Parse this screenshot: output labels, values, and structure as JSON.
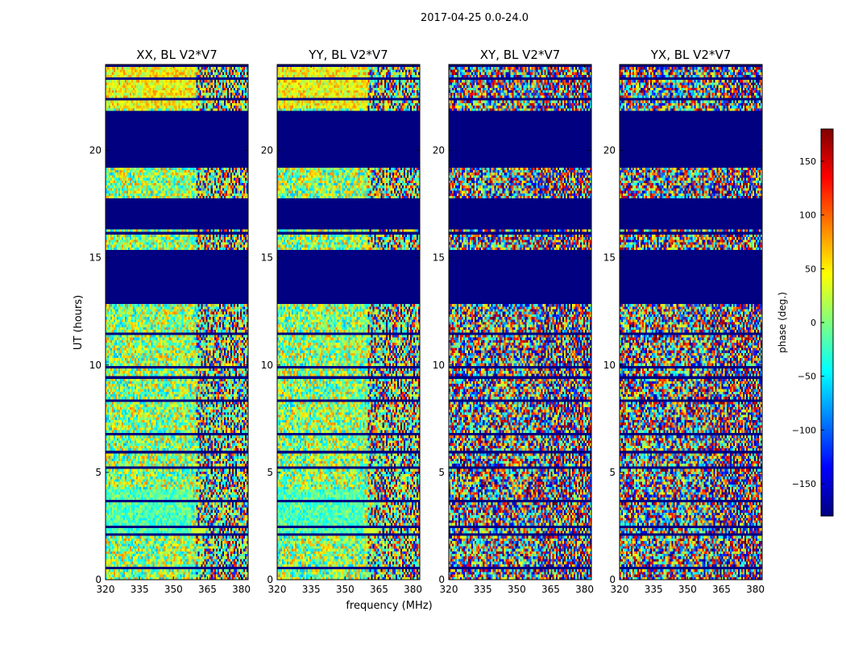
{
  "suptitle": "2017-04-25 0.0-24.0",
  "chart_data": [
    {
      "type": "heatmap",
      "title": "XX, BL V2*V7",
      "xlabel": "frequency (MHz)",
      "ylabel": "UT (hours)",
      "xlim": [
        320,
        383
      ],
      "ylim": [
        0,
        24
      ],
      "xticks": [
        "320",
        "335",
        "350",
        "365",
        "380"
      ],
      "yticks": [
        "0",
        "5",
        "10",
        "15",
        "20"
      ],
      "masked_bands_hours": [
        [
          13.0,
          15.4
        ],
        [
          16.5,
          17.8
        ],
        [
          19.3,
          21.8
        ]
      ],
      "bright_ridge": {
        "hours": [
          4.2,
          2.0
        ],
        "band_hours": [
          2.1,
          2.5
        ]
      }
    },
    {
      "type": "heatmap",
      "title": "YY, BL V2*V7",
      "xlabel": "frequency (MHz)",
      "xlim": [
        320,
        383
      ],
      "ylim": [
        0,
        24
      ],
      "xticks": [
        "320",
        "335",
        "350",
        "365",
        "380"
      ],
      "yticks": [
        "0",
        "5",
        "10",
        "15",
        "20"
      ],
      "masked_bands_hours": [
        [
          13.0,
          15.4
        ],
        [
          16.5,
          17.8
        ],
        [
          19.3,
          21.8
        ]
      ],
      "bright_ridge": {
        "hours": [
          4.2,
          2.0
        ],
        "band_hours": [
          2.1,
          2.5
        ]
      }
    },
    {
      "type": "heatmap",
      "title": "XY, BL V2*V7",
      "xlim": [
        320,
        383
      ],
      "ylim": [
        0,
        24
      ],
      "xticks": [
        "320",
        "335",
        "350",
        "365",
        "380"
      ],
      "yticks": [
        "0",
        "5",
        "10",
        "15",
        "20"
      ],
      "masked_bands_hours": [
        [
          13.0,
          15.4
        ],
        [
          16.5,
          17.8
        ],
        [
          19.3,
          21.8
        ]
      ]
    },
    {
      "type": "heatmap",
      "title": "YX, BL V2*V7",
      "xlim": [
        320,
        383
      ],
      "ylim": [
        0,
        24
      ],
      "xticks": [
        "320",
        "335",
        "350",
        "365",
        "380"
      ],
      "yticks": [
        "0",
        "5",
        "10",
        "15",
        "20"
      ],
      "masked_bands_hours": [
        [
          13.0,
          15.4
        ],
        [
          16.5,
          17.8
        ],
        [
          19.3,
          21.8
        ]
      ]
    }
  ],
  "colorbar": {
    "label": "phase (deg.)",
    "range": [
      -180,
      180
    ],
    "ticks": [
      "150",
      "100",
      "50",
      "0",
      "−50",
      "−100",
      "−150"
    ],
    "tick_values": [
      150,
      100,
      50,
      0,
      -50,
      -100,
      -150
    ],
    "colormap": "jet"
  }
}
